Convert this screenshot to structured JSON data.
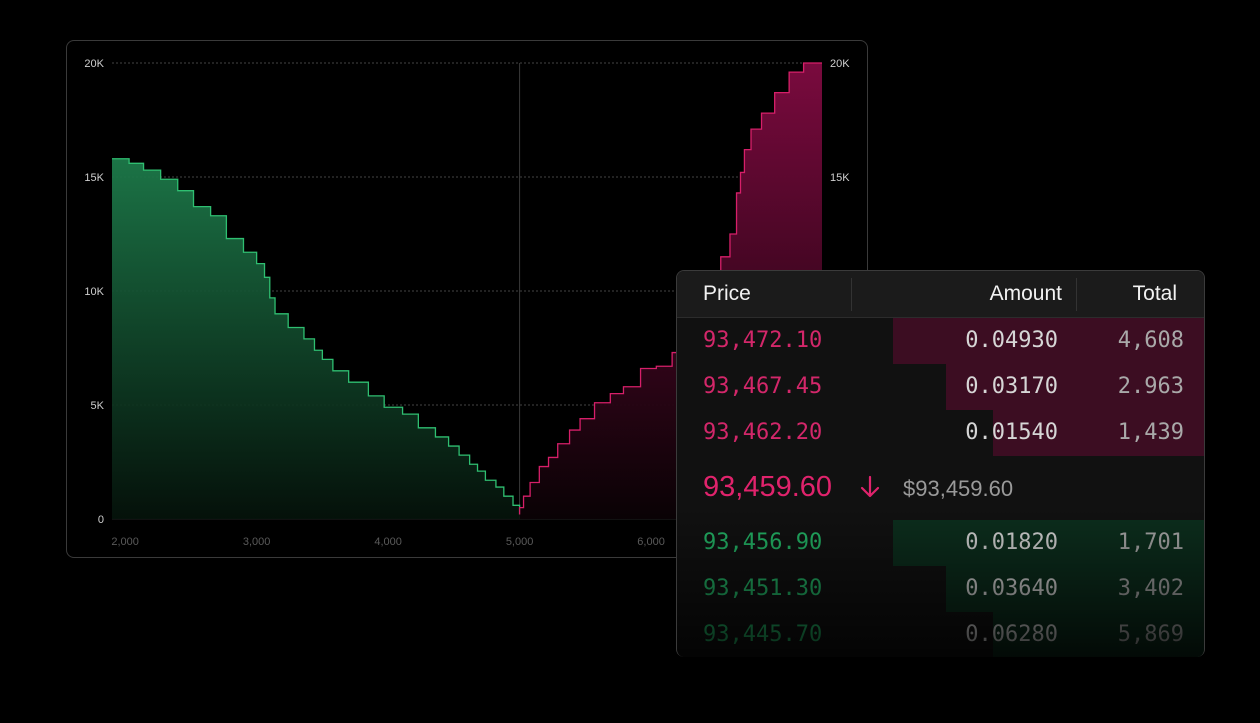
{
  "chart_data": {
    "type": "area",
    "title": "",
    "xlabel": "",
    "ylabel": "",
    "xlim": [
      1900,
      7300
    ],
    "ylim": [
      0,
      20000
    ],
    "x_ticks": [
      "2,000",
      "3,000",
      "4,000",
      "5,000",
      "6,000"
    ],
    "x_tick_values": [
      2000,
      3000,
      4000,
      5000,
      6000
    ],
    "y_ticks": [
      "0",
      "5K",
      "10K",
      "15K",
      "20K"
    ],
    "y_tick_values": [
      0,
      5000,
      10000,
      15000,
      20000
    ],
    "y_ticks_right": [
      "15K",
      "20K"
    ],
    "y_tick_values_right": [
      15000,
      20000
    ],
    "grid": true,
    "mid_x": 5000,
    "series": [
      {
        "side": "bids",
        "color": "#2fbf71",
        "x": [
          1900,
          2030,
          2140,
          2270,
          2400,
          2520,
          2650,
          2770,
          2900,
          3000,
          3060,
          3100,
          3140,
          3240,
          3360,
          3440,
          3500,
          3580,
          3700,
          3850,
          3970,
          4110,
          4230,
          4360,
          4460,
          4540,
          4620,
          4680,
          4740,
          4820,
          4880,
          4950,
          5000
        ],
        "y": [
          15800,
          15600,
          15300,
          14900,
          14400,
          13700,
          13300,
          12300,
          11700,
          11200,
          10600,
          9700,
          9000,
          8400,
          7900,
          7400,
          7000,
          6500,
          6000,
          5400,
          4900,
          4600,
          4000,
          3600,
          3200,
          2800,
          2400,
          2100,
          1700,
          1400,
          1000,
          600,
          200
        ]
      },
      {
        "side": "asks",
        "color": "#d61f69",
        "x": [
          5000,
          5030,
          5080,
          5150,
          5220,
          5290,
          5380,
          5460,
          5570,
          5690,
          5790,
          5920,
          6040,
          6160,
          6270,
          6360,
          6460,
          6530,
          6600,
          6650,
          6680,
          6710,
          6760,
          6840,
          6940,
          7050,
          7160,
          7300
        ],
        "y": [
          200,
          500,
          1000,
          1600,
          2300,
          2700,
          3300,
          3900,
          4400,
          5100,
          5500,
          5800,
          6600,
          6700,
          7300,
          8700,
          9600,
          10700,
          11500,
          12500,
          14300,
          15200,
          16200,
          17100,
          17800,
          18700,
          19600,
          20000
        ]
      }
    ]
  },
  "orderbook": {
    "headers": {
      "price": "Price",
      "amount": "Amount",
      "total": "Total"
    },
    "asks": [
      {
        "price": "93,472.10",
        "amount": "0.04930",
        "total": "4,608",
        "depth": 0.59
      },
      {
        "price": "93,467.45",
        "amount": "0.03170",
        "total": "2.963",
        "depth": 0.49
      },
      {
        "price": "93,462.20",
        "amount": "0.01540",
        "total": "1,439",
        "depth": 0.4
      }
    ],
    "mid": {
      "price": "93,459.60",
      "usd": "$93,459.60",
      "direction": "down",
      "arrow_icon": "arrow-down-icon"
    },
    "bids": [
      {
        "price": "93,456.90",
        "amount": "0.01820",
        "total": "1,701",
        "depth": 0.59
      },
      {
        "price": "93,451.30",
        "amount": "0.03640",
        "total": "3,402",
        "depth": 0.49
      },
      {
        "price": "93,445.70",
        "amount": "0.06280",
        "total": "5,869",
        "depth": 0.4
      }
    ]
  },
  "colors": {
    "ask": "#d3276a",
    "bid": "#23b466",
    "mid": "#e0236c",
    "background": "#000000"
  }
}
